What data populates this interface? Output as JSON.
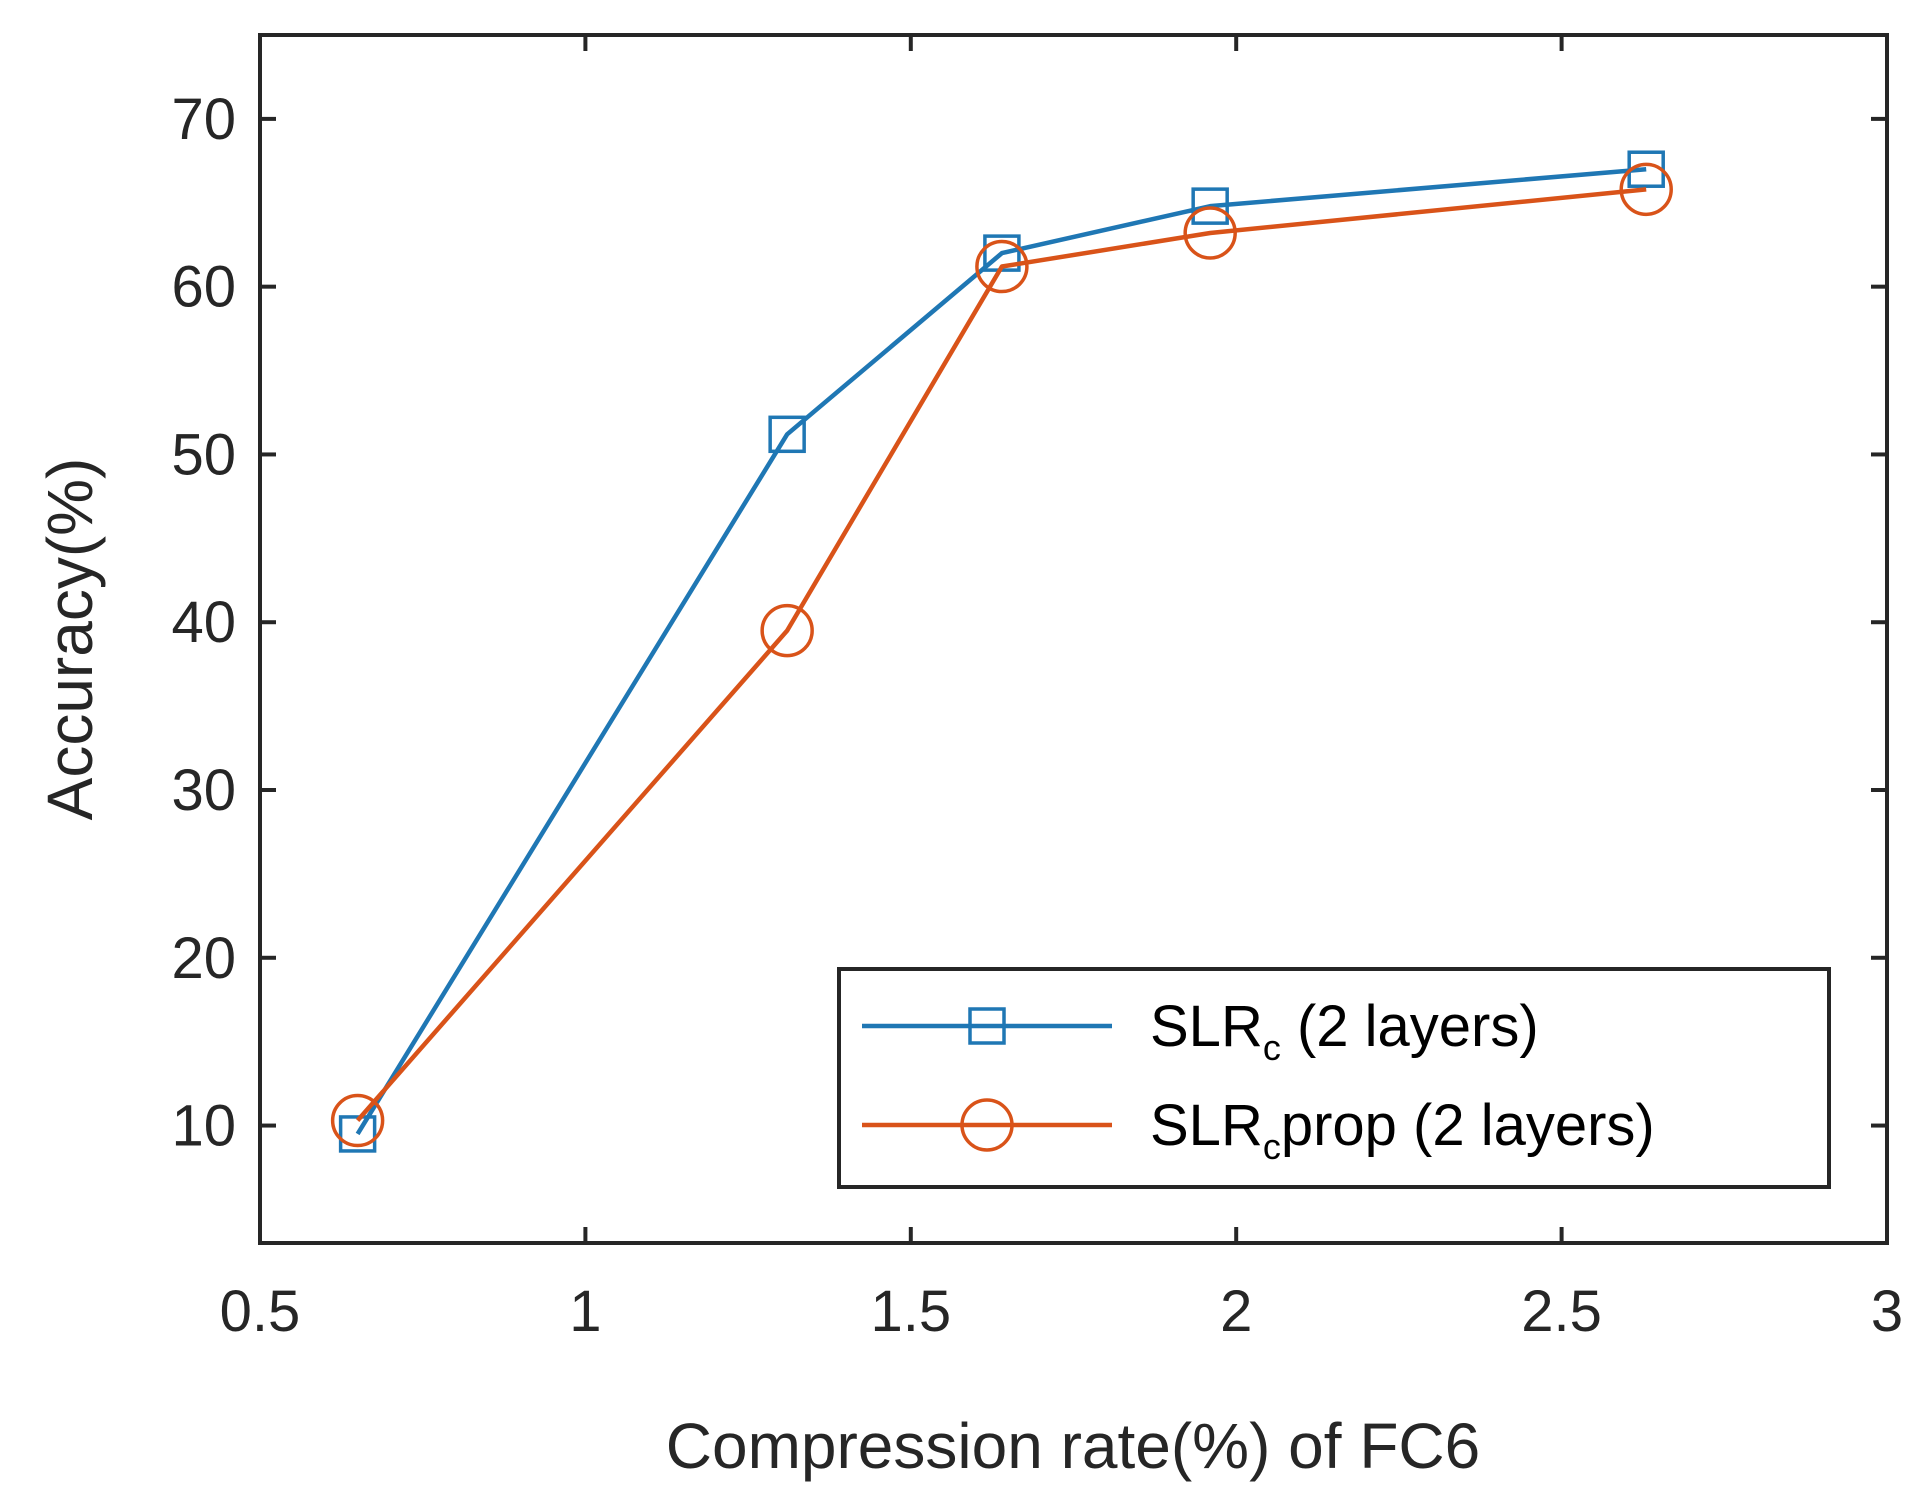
{
  "chart_data": {
    "type": "line",
    "title": "",
    "xlabel": "Compression rate(%) of FC6",
    "ylabel": "Accuracy(%)",
    "xlim": [
      0.5,
      3
    ],
    "ylim": [
      3,
      75
    ],
    "xticks": [
      0.5,
      1,
      1.5,
      2,
      2.5,
      3
    ],
    "xtick_labels": [
      "0.5",
      "1",
      "1.5",
      "2",
      "2.5",
      "3"
    ],
    "yticks": [
      10,
      20,
      30,
      40,
      50,
      60,
      70
    ],
    "ytick_labels": [
      "10",
      "20",
      "30",
      "40",
      "50",
      "60",
      "70"
    ],
    "grid": false,
    "legend_position": "bottom-right",
    "series": [
      {
        "name": "SLRc (2 layers)",
        "label_main": "SLR",
        "label_sub": "c",
        "label_rest": "  (2  layers)",
        "color": "#1f77b4",
        "marker": "square",
        "x": [
          0.65,
          1.31,
          1.64,
          1.96,
          2.63
        ],
        "y": [
          9.5,
          51.2,
          62.0,
          64.8,
          67.0
        ]
      },
      {
        "name": "SLRcprop (2 layers)",
        "label_main": "SLR",
        "label_sub": "c",
        "label_rest": "prop  (2  layers)",
        "color": "#d95319",
        "marker": "circle",
        "x": [
          0.65,
          1.31,
          1.64,
          1.96,
          2.63
        ],
        "y": [
          10.3,
          39.5,
          61.2,
          63.2,
          65.8
        ]
      }
    ]
  }
}
